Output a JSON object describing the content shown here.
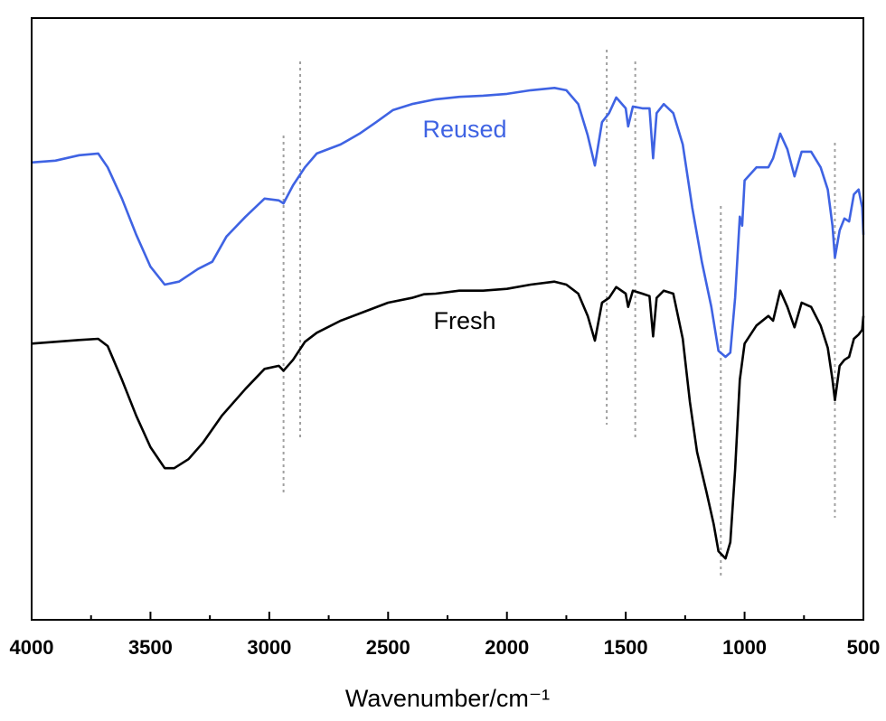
{
  "chart_data": {
    "type": "line",
    "xlabel": "Wavenumber/cm⁻¹",
    "xlim": [
      4000,
      500
    ],
    "xticks": [
      4000,
      3500,
      3000,
      2500,
      2000,
      1500,
      1000,
      500
    ],
    "xminor_ticks": [
      3750,
      3250,
      2750,
      2250,
      1750,
      1250,
      750
    ],
    "ylim": [
      0,
      100
    ],
    "reference_lines": [
      2940,
      2870,
      1580,
      1460,
      1100,
      620
    ],
    "reference_color": "#a0a0a0",
    "series": [
      {
        "name": "Reused",
        "color": "#3f63e3",
        "x": [
          4000,
          3900,
          3800,
          3720,
          3680,
          3620,
          3560,
          3500,
          3440,
          3380,
          3300,
          3240,
          3180,
          3100,
          3020,
          2960,
          2940,
          2900,
          2850,
          2800,
          2700,
          2620,
          2550,
          2480,
          2400,
          2300,
          2200,
          2100,
          2000,
          1900,
          1800,
          1750,
          1700,
          1660,
          1630,
          1600,
          1570,
          1540,
          1500,
          1490,
          1470,
          1430,
          1400,
          1385,
          1370,
          1340,
          1300,
          1260,
          1220,
          1180,
          1140,
          1110,
          1080,
          1060,
          1040,
          1020,
          1010,
          1000,
          950,
          900,
          880,
          850,
          820,
          790,
          760,
          720,
          680,
          650,
          630,
          620,
          600,
          580,
          560,
          540,
          520,
          505,
          500
        ],
        "values": [
          76.0,
          76.3,
          77.2,
          77.5,
          75.2,
          70.0,
          64.0,
          58.7,
          55.7,
          56.2,
          58.3,
          59.5,
          63.7,
          67.0,
          70.0,
          69.7,
          69.2,
          72.2,
          75.2,
          77.5,
          79.0,
          80.8,
          82.7,
          84.7,
          85.7,
          86.5,
          86.9,
          87.1,
          87.4,
          88.0,
          88.4,
          88.0,
          85.7,
          80.5,
          75.5,
          82.7,
          84.2,
          86.8,
          85.0,
          82.0,
          85.3,
          85.0,
          85.0,
          76.7,
          84.2,
          85.7,
          84.2,
          79.0,
          68.5,
          59.5,
          52.0,
          44.7,
          43.7,
          44.4,
          53.5,
          67.0,
          65.5,
          73.0,
          75.2,
          75.2,
          76.7,
          80.8,
          78.2,
          73.7,
          77.8,
          77.8,
          75.2,
          71.5,
          65.5,
          60.2,
          64.7,
          66.7,
          66.2,
          70.7,
          71.5,
          68.5,
          64.0
        ]
      },
      {
        "name": "Fresh",
        "color": "#000000",
        "x": [
          4000,
          3900,
          3800,
          3720,
          3680,
          3620,
          3560,
          3500,
          3440,
          3400,
          3340,
          3280,
          3200,
          3100,
          3020,
          2960,
          2940,
          2900,
          2850,
          2800,
          2700,
          2600,
          2500,
          2400,
          2350,
          2300,
          2200,
          2100,
          2000,
          1900,
          1800,
          1750,
          1700,
          1660,
          1630,
          1600,
          1570,
          1540,
          1500,
          1490,
          1470,
          1430,
          1400,
          1385,
          1370,
          1340,
          1300,
          1260,
          1230,
          1200,
          1160,
          1130,
          1110,
          1080,
          1060,
          1040,
          1020,
          1000,
          950,
          900,
          880,
          850,
          820,
          790,
          760,
          720,
          680,
          650,
          630,
          620,
          600,
          580,
          560,
          540,
          520,
          505,
          500
        ],
        "values": [
          45.9,
          46.2,
          46.5,
          46.7,
          45.5,
          39.9,
          33.9,
          28.7,
          25.2,
          25.2,
          26.7,
          29.4,
          33.9,
          38.4,
          41.7,
          42.2,
          41.4,
          43.2,
          46.2,
          47.7,
          49.7,
          51.2,
          52.7,
          53.5,
          54.1,
          54.2,
          54.7,
          54.7,
          55.0,
          55.7,
          56.2,
          55.7,
          54.2,
          50.5,
          46.4,
          52.7,
          53.5,
          55.3,
          54.2,
          52.0,
          54.7,
          54.2,
          53.8,
          47.1,
          53.5,
          54.7,
          54.2,
          46.7,
          36.2,
          27.9,
          21.2,
          15.9,
          11.4,
          10.2,
          12.9,
          24.9,
          39.9,
          45.9,
          48.9,
          50.5,
          49.7,
          54.7,
          52.0,
          48.6,
          52.7,
          52.0,
          48.9,
          45.2,
          39.9,
          36.5,
          42.2,
          43.2,
          43.7,
          46.7,
          47.4,
          48.2,
          50.5
        ]
      }
    ]
  }
}
